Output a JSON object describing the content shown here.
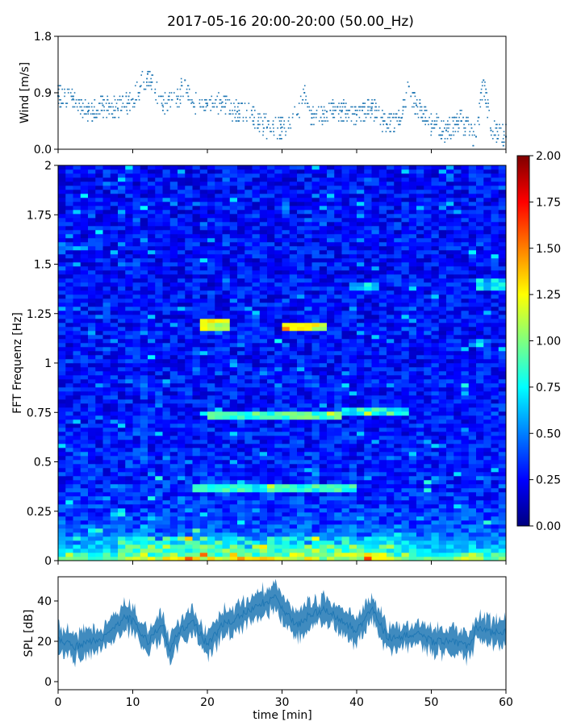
{
  "figure": {
    "title": "2017-05-16 20:00-20:00 (50.00_Hz)"
  },
  "chart_data": [
    {
      "type": "scatter",
      "ylabel": "Wind [m/s]",
      "xlim": [
        0,
        60
      ],
      "ylim": [
        0,
        1.8
      ],
      "yticks": [
        "0.0",
        "0.9",
        "1.8"
      ],
      "color": "#1f77b4",
      "series": [
        {
          "x": [
            0,
            2,
            4,
            6,
            8,
            10,
            11,
            12,
            14,
            16,
            17,
            18,
            20,
            22,
            24,
            26,
            28,
            30,
            32,
            33,
            34,
            36,
            38,
            40,
            42,
            44,
            46,
            47,
            48,
            50,
            52,
            54,
            56,
            57,
            58,
            60
          ],
          "y": [
            0.85,
            0.8,
            0.6,
            0.7,
            0.65,
            0.8,
            1.0,
            1.2,
            0.7,
            0.8,
            1.1,
            0.75,
            0.7,
            0.75,
            0.6,
            0.55,
            0.35,
            0.35,
            0.55,
            0.9,
            0.5,
            0.6,
            0.6,
            0.55,
            0.65,
            0.4,
            0.5,
            1.0,
            0.7,
            0.4,
            0.3,
            0.45,
            0.2,
            1.1,
            0.3,
            0.2
          ]
        }
      ]
    },
    {
      "type": "heatmap",
      "ylabel": "FFT Frequenz [Hz]",
      "xlim": [
        0,
        60
      ],
      "ylim": [
        0,
        2
      ],
      "yticks": [
        "0",
        "0.25",
        "0.5",
        "0.75",
        "1",
        "1.25",
        "1.5",
        "1.75",
        "2"
      ],
      "colormap": "jet",
      "colorbar": {
        "range": [
          0,
          2
        ],
        "ticks": [
          "0.00",
          "0.25",
          "0.50",
          "0.75",
          "1.00",
          "1.25",
          "1.50",
          "1.75",
          "2.00"
        ]
      }
    },
    {
      "type": "line",
      "ylabel": "SPL [dB]",
      "xlabel": "time [min]",
      "xlim": [
        0,
        60
      ],
      "ylim": [
        -4,
        52
      ],
      "yticks": [
        "0",
        "20",
        "40"
      ],
      "xticks": [
        "0",
        "10",
        "20",
        "30",
        "40",
        "50",
        "60"
      ],
      "color": "#1f77b4",
      "series": [
        {
          "x": [
            0,
            2,
            4,
            6,
            8,
            9,
            10,
            12,
            14,
            15,
            16,
            18,
            20,
            22,
            24,
            26,
            28,
            29,
            30,
            32,
            34,
            36,
            38,
            40,
            41,
            42,
            44,
            46,
            48,
            50,
            52,
            54,
            55,
            56,
            58,
            60
          ],
          "y": [
            22,
            17,
            19,
            22,
            28,
            32,
            30,
            20,
            28,
            15,
            24,
            30,
            18,
            28,
            32,
            36,
            40,
            42,
            36,
            28,
            34,
            36,
            30,
            25,
            30,
            38,
            22,
            22,
            24,
            20,
            20,
            19,
            18,
            26,
            24,
            25
          ]
        }
      ]
    }
  ]
}
